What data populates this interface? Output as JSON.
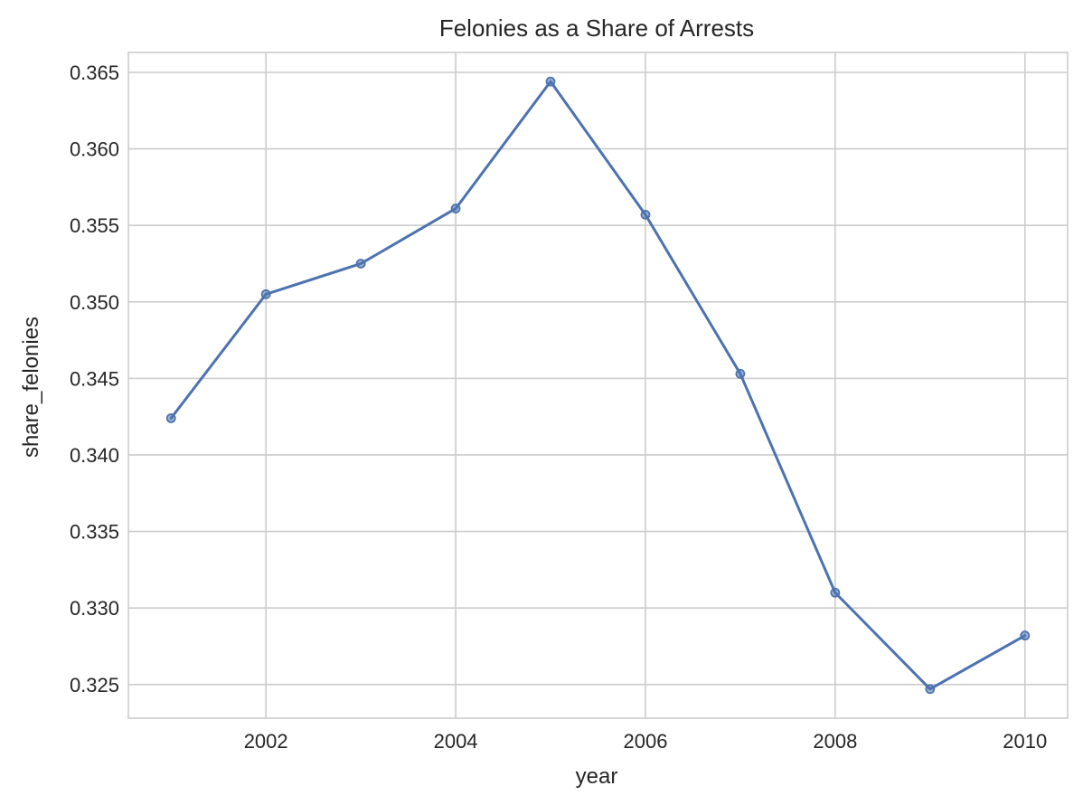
{
  "chart_data": {
    "type": "line",
    "title": "Felonies as a Share of Arrests",
    "xlabel": "year",
    "ylabel": "share_felonies",
    "x": [
      2001,
      2002,
      2003,
      2004,
      2005,
      2006,
      2007,
      2008,
      2009,
      2010
    ],
    "series": [
      {
        "values": [
          0.3424,
          0.3505,
          0.3525,
          0.3561,
          0.3644,
          0.3557,
          0.3453,
          0.331,
          0.3247,
          0.3282
        ],
        "color": "#4c72b0"
      }
    ],
    "xlim": [
      2000.55,
      2010.45
    ],
    "ylim": [
      0.3228,
      0.3663
    ],
    "xticks": [
      2002,
      2004,
      2006,
      2008,
      2010
    ],
    "xtick_labels": [
      "2002",
      "2004",
      "2006",
      "2008",
      "2010"
    ],
    "yticks": [
      0.325,
      0.33,
      0.335,
      0.34,
      0.345,
      0.35,
      0.355,
      0.36,
      0.365
    ],
    "ytick_labels": [
      "0.325",
      "0.330",
      "0.335",
      "0.340",
      "0.345",
      "0.350",
      "0.355",
      "0.360",
      "0.365"
    ],
    "grid": true,
    "markers": "circle",
    "legend": "none"
  }
}
